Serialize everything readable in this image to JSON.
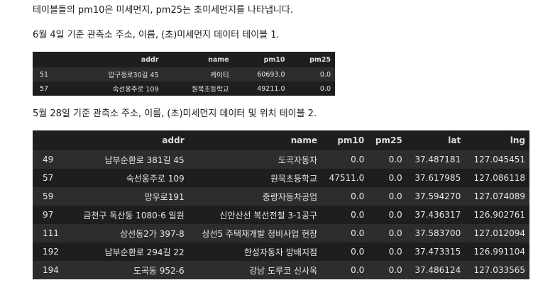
{
  "text": {
    "intro": "테이블들의 pm10은 미세먼지, pm25는 초미세먼지를 나타냅니다.",
    "caption1": "6월 4일 기준 관측소 주소, 이름, (초)미세먼지 데이터 테이블 1.",
    "caption2": "5월 28일 기준 관측소 주소, 이름, (초)미세먼지 데이터 및 위치 테이블 2."
  },
  "table1": {
    "columns": [
      "",
      "addr",
      "name",
      "pm10",
      "pm25"
    ],
    "rows": [
      [
        "51",
        "압구정로30길 45",
        "케이티",
        "60693.0",
        "0.0"
      ],
      [
        "57",
        "숙선옹주로 109",
        "원묵초등학교",
        "49211.0",
        "0.0"
      ]
    ]
  },
  "table2": {
    "columns": [
      "",
      "addr",
      "name",
      "pm10",
      "pm25",
      "lat",
      "lng"
    ],
    "rows": [
      [
        "49",
        "남부순환로 381길 45",
        "도곡자동차",
        "0.0",
        "0.0",
        "37.487181",
        "127.045451"
      ],
      [
        "57",
        "숙선옹주로 109",
        "원묵초등학교",
        "47511.0",
        "0.0",
        "37.617985",
        "127.086118"
      ],
      [
        "59",
        "망우로191",
        "중랑자동차공업",
        "0.0",
        "0.0",
        "37.594270",
        "127.074089"
      ],
      [
        "97",
        "금천구 독산동 1080-6 일원",
        "신안산선 복선전철 3-1공구",
        "0.0",
        "0.0",
        "37.436317",
        "126.902761"
      ],
      [
        "111",
        "삼선동2가 397-8",
        "삼선5 주택재개발 정비사업 현장",
        "0.0",
        "0.0",
        "37.583700",
        "127.012094"
      ],
      [
        "192",
        "남부순환로 294길 22",
        "한성자동차 방배지점",
        "0.0",
        "0.0",
        "37.473315",
        "126.991104"
      ],
      [
        "194",
        "도곡동 952-6",
        "강남 도루코 신사옥",
        "0.0",
        "0.0",
        "37.486124",
        "127.033565"
      ]
    ]
  }
}
